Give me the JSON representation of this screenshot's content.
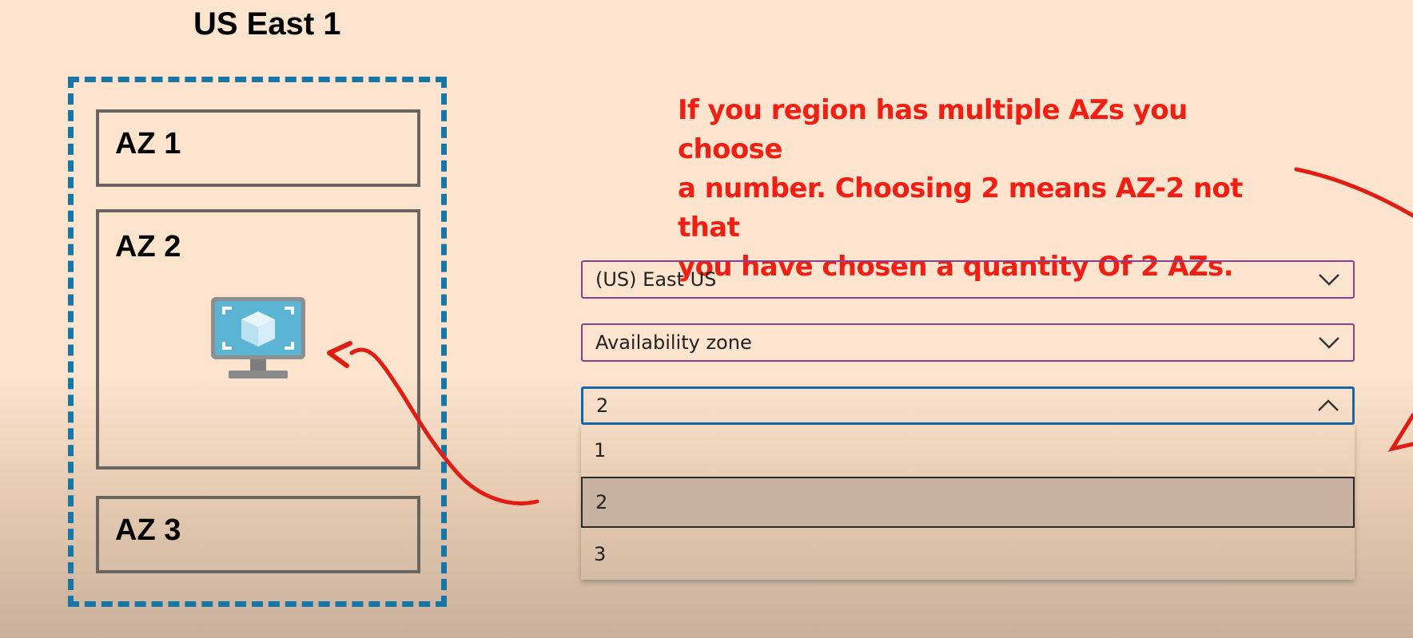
{
  "diagram": {
    "region_title": "US East 1",
    "zones": [
      "AZ 1",
      "AZ 2",
      "AZ 3"
    ],
    "vm_icon": "virtual-machine-icon"
  },
  "annotation": {
    "lines": [
      "If you region has multiple AZs you choose",
      "a number. Choosing 2 means AZ-2 not that",
      "you have chosen a quantity Of 2 AZs."
    ],
    "color": "#ef1f14"
  },
  "form": {
    "region_select": {
      "value": "(US) East US"
    },
    "availability_select": {
      "value": "Availability zone"
    },
    "zone_select": {
      "value": "2",
      "options": [
        "1",
        "2",
        "3"
      ],
      "selected": "2"
    }
  },
  "colors": {
    "region_border": "#1677a6",
    "focus_border": "#1565a8",
    "select_border": "#8a3f8a"
  }
}
